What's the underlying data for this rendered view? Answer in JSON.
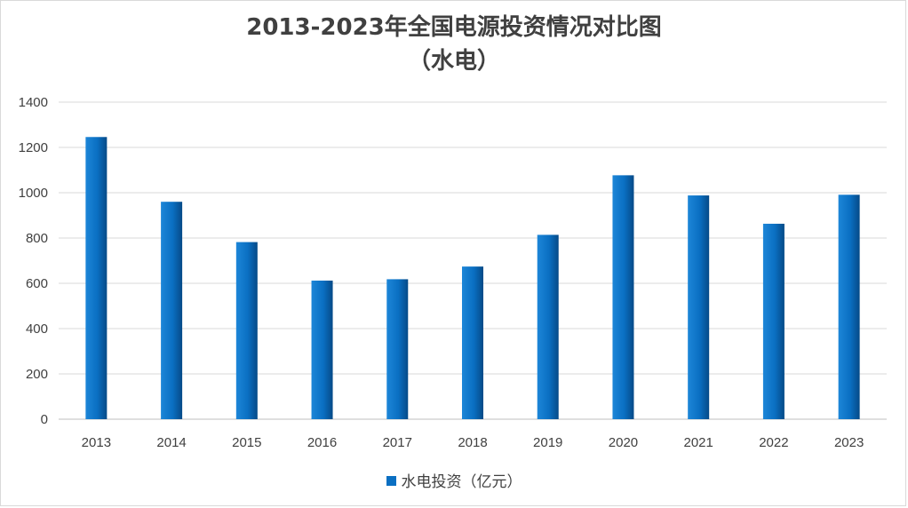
{
  "chart_data": {
    "type": "bar",
    "title": "2013-2023年全国电源投资情况对比图",
    "subtitle": "（水电）",
    "categories": [
      "2013",
      "2014",
      "2015",
      "2016",
      "2017",
      "2018",
      "2019",
      "2020",
      "2021",
      "2022",
      "2023"
    ],
    "series": [
      {
        "name": "水电投资（亿元）",
        "values": [
          1246,
          960,
          782,
          612,
          618,
          674,
          814,
          1077,
          988,
          863,
          991
        ],
        "color": "#0a6fc2"
      }
    ],
    "yticks": [
      "0",
      "200",
      "400",
      "600",
      "800",
      "1000",
      "1200",
      "1400"
    ],
    "ylim": [
      0,
      1400
    ],
    "grid": true,
    "legend_position": "bottom"
  }
}
